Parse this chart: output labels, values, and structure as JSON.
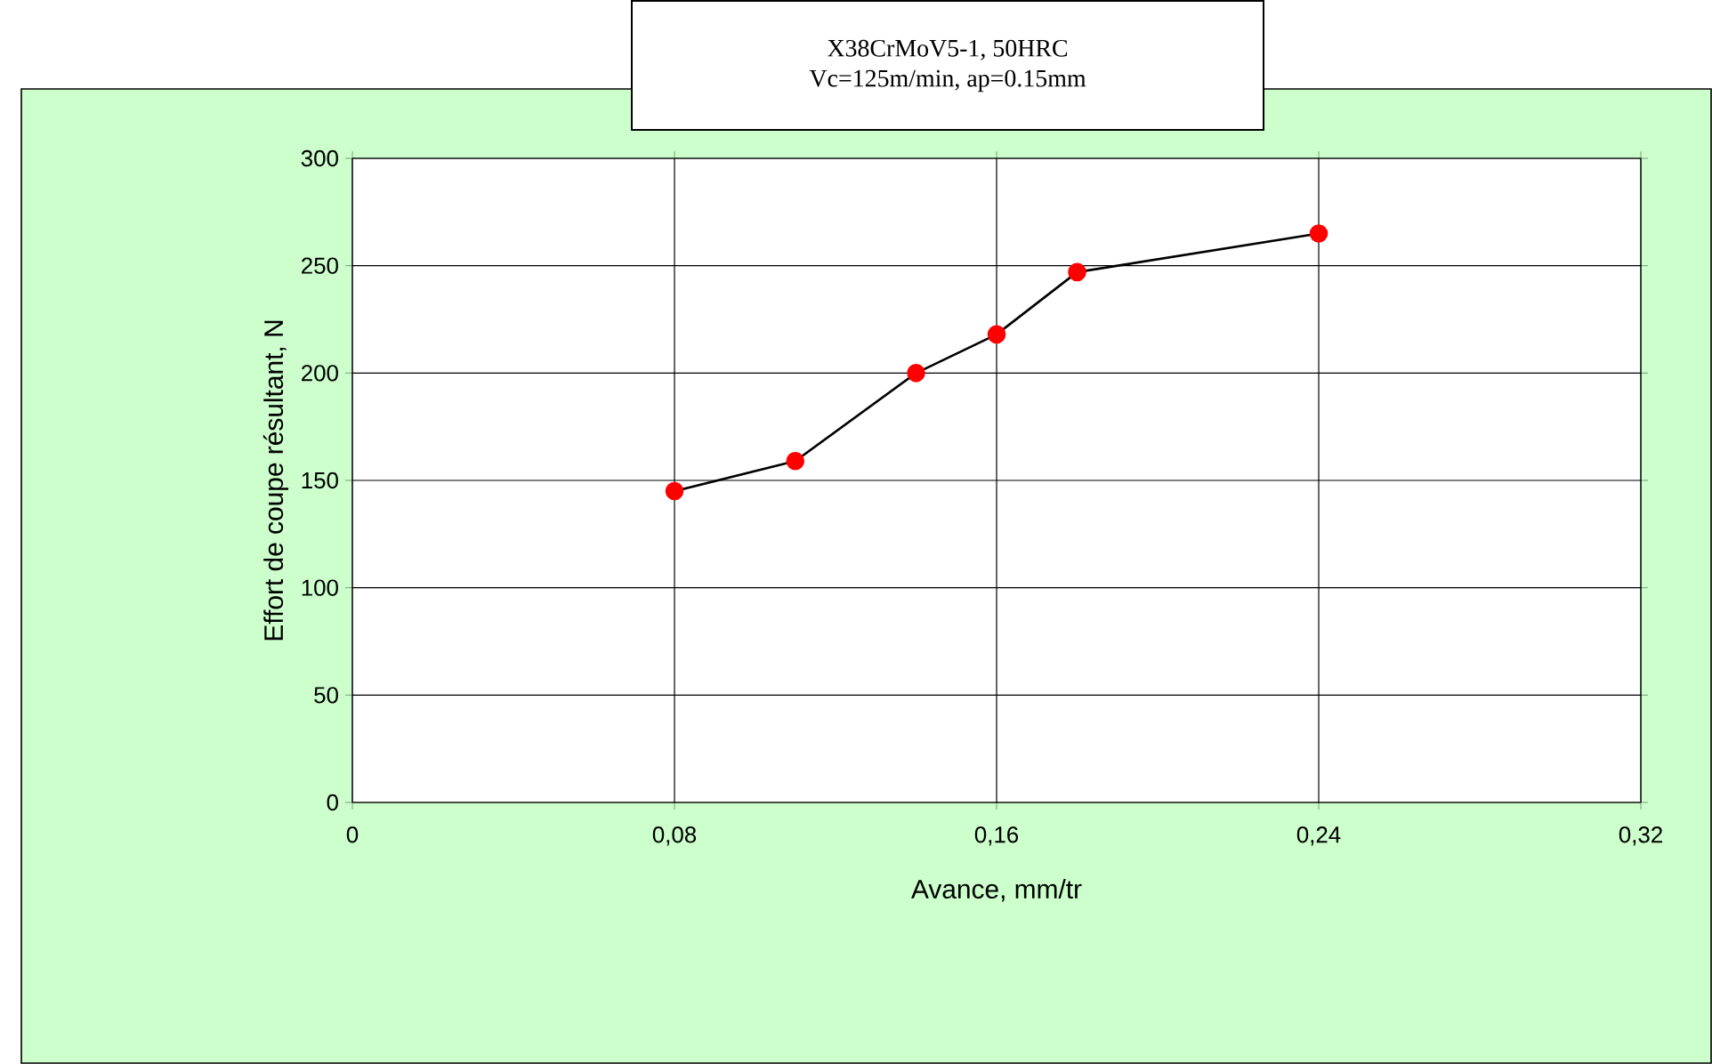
{
  "chart_data": {
    "type": "line",
    "title": "X38CrMoV5-1, 50HRC",
    "subtitle": "Vc=125m/min, ap=0.15mm",
    "xlabel": "Avance, mm/tr",
    "ylabel": "Effort de coupe résultant, N",
    "x": [
      0.08,
      0.11,
      0.14,
      0.16,
      0.18,
      0.24
    ],
    "series": [
      {
        "color": "#ff0000",
        "values": [
          145,
          159,
          200,
          218,
          247,
          265
        ]
      }
    ],
    "xlim": [
      0,
      0.32
    ],
    "ylim": [
      0,
      300
    ],
    "xticks": [
      0,
      {
        "value": 0.08,
        "label": "0,08"
      },
      {
        "value": 0.16,
        "label": "0,16"
      },
      {
        "value": 0.24,
        "label": "0,24"
      },
      {
        "value": 0.32,
        "label": "0,32"
      }
    ],
    "yticks": [
      0,
      50,
      100,
      150,
      200,
      250,
      300
    ],
    "grid": true,
    "marker": "circle",
    "line_style": "solid"
  }
}
